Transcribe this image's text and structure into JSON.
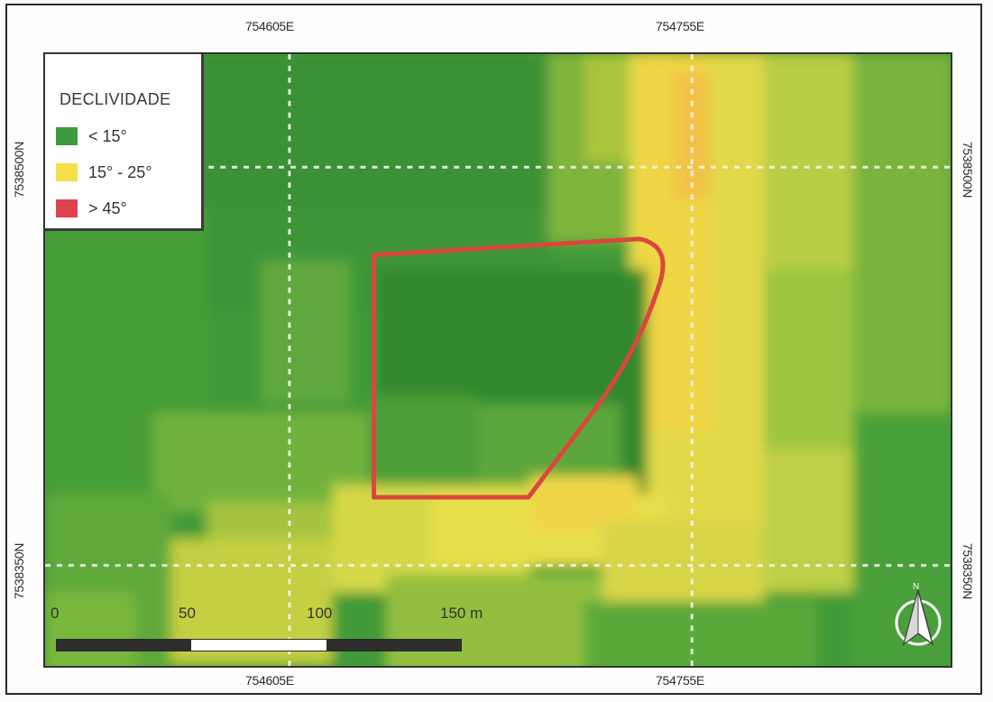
{
  "map": {
    "coordinates": {
      "top": [
        "754605E",
        "754755E"
      ],
      "bottom": [
        "754605E",
        "754755E"
      ],
      "left": [
        "7538500N",
        "7538350N"
      ],
      "right": [
        "7538500N",
        "7538350N"
      ]
    },
    "legend": {
      "title": "DECLIVIDADE",
      "items": [
        {
          "label": "< 15°",
          "color": "#3e9b3b"
        },
        {
          "label": "15° - 25°",
          "color": "#f5e04a"
        },
        {
          "label": "> 45°",
          "color": "#e0434e"
        }
      ]
    },
    "scale": {
      "labels": [
        "0",
        "50",
        "100",
        "150 m"
      ]
    },
    "north_arrow": {
      "label": "N"
    },
    "boundary_color": "#d9473f",
    "grid_color": "#f4f4ee"
  }
}
